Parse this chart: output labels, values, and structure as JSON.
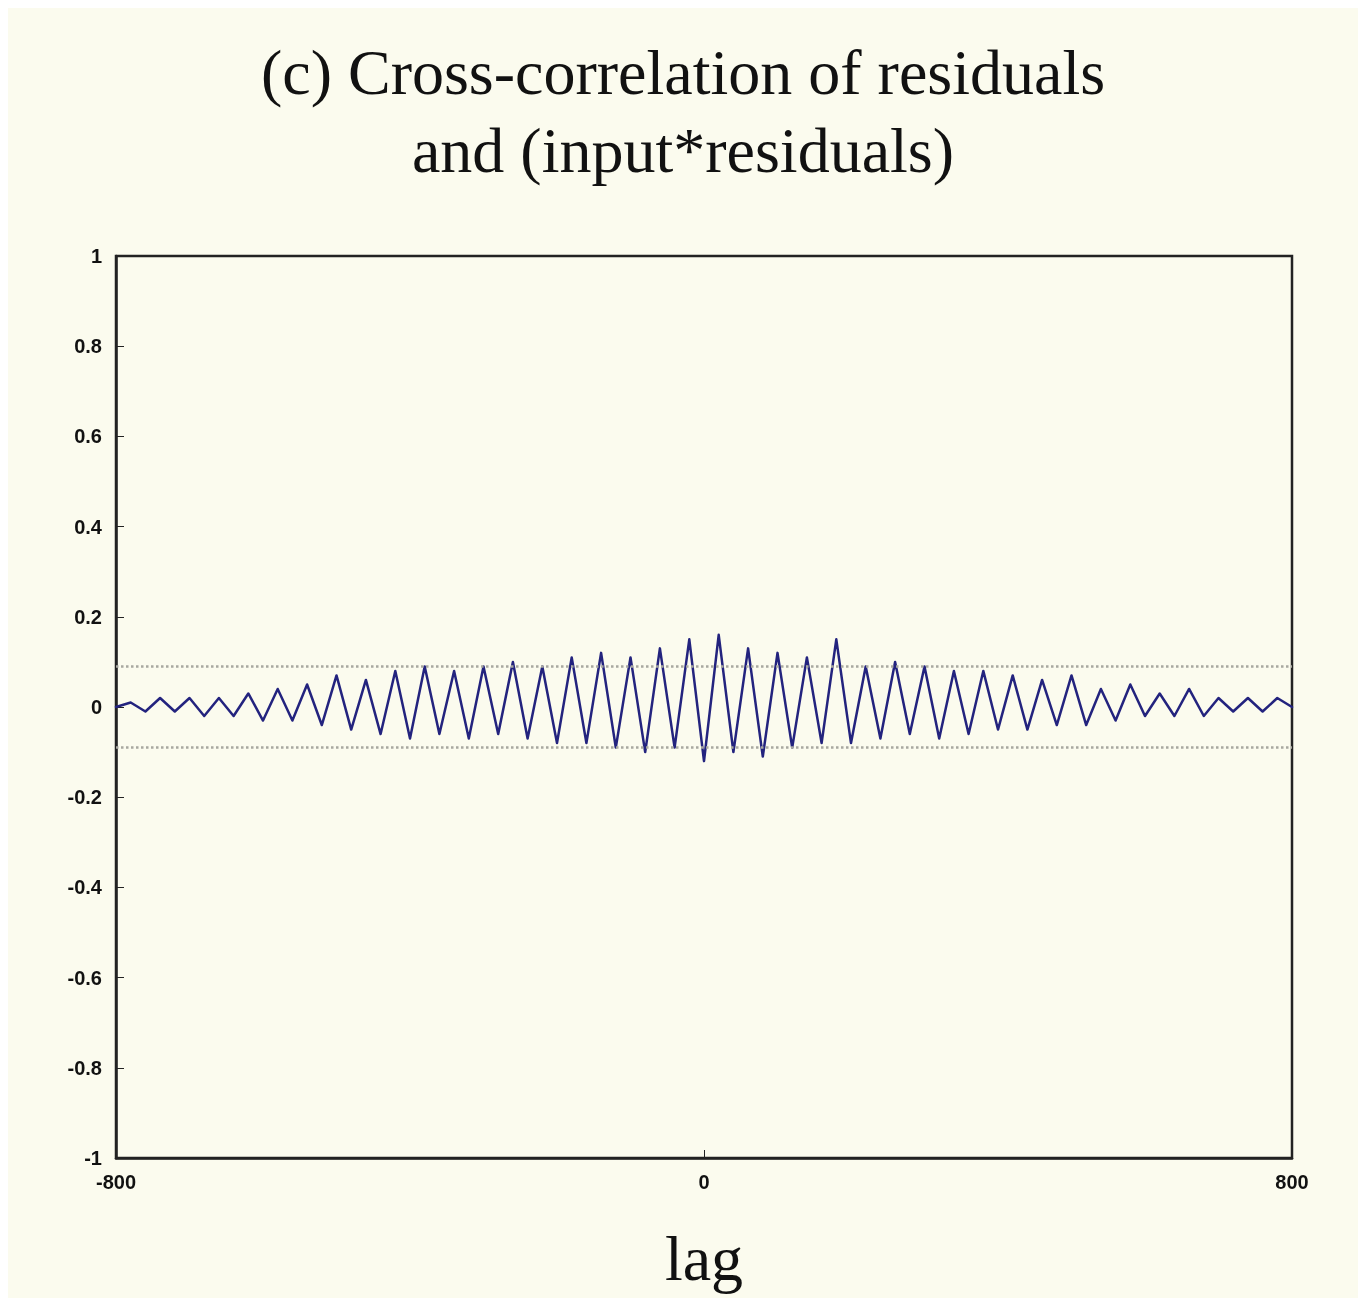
{
  "chart_data": {
    "type": "line",
    "title": "(c) Cross-correlation of residuals\nand (input*residuals)",
    "xlabel": "lag",
    "x": [
      -800,
      -780,
      -760,
      -740,
      -720,
      -700,
      -680,
      -660,
      -640,
      -620,
      -600,
      -580,
      -560,
      -540,
      -520,
      -500,
      -480,
      -460,
      -440,
      -420,
      -400,
      -380,
      -360,
      -340,
      -320,
      -300,
      -280,
      -260,
      -240,
      -220,
      -200,
      -180,
      -160,
      -140,
      -120,
      -100,
      -80,
      -60,
      -40,
      -20,
      0,
      20,
      40,
      60,
      80,
      100,
      120,
      140,
      160,
      180,
      200,
      220,
      240,
      260,
      280,
      300,
      320,
      340,
      360,
      380,
      400,
      420,
      440,
      460,
      480,
      500,
      520,
      540,
      560,
      580,
      600,
      620,
      640,
      660,
      680,
      700,
      720,
      740,
      760,
      780,
      800
    ],
    "series": [
      {
        "color": "#23237e",
        "values": [
          0.0,
          0.01,
          -0.01,
          0.02,
          -0.01,
          0.02,
          -0.02,
          0.02,
          -0.02,
          0.03,
          -0.03,
          0.04,
          -0.03,
          0.05,
          -0.04,
          0.07,
          -0.05,
          0.06,
          -0.06,
          0.08,
          -0.07,
          0.09,
          -0.06,
          0.08,
          -0.07,
          0.09,
          -0.06,
          0.1,
          -0.07,
          0.09,
          -0.08,
          0.11,
          -0.08,
          0.12,
          -0.09,
          0.11,
          -0.1,
          0.13,
          -0.09,
          0.15,
          -0.12,
          0.16,
          -0.1,
          0.13,
          -0.11,
          0.12,
          -0.09,
          0.11,
          -0.08,
          0.15,
          -0.08,
          0.09,
          -0.07,
          0.1,
          -0.06,
          0.09,
          -0.07,
          0.08,
          -0.06,
          0.08,
          -0.05,
          0.07,
          -0.05,
          0.06,
          -0.04,
          0.07,
          -0.04,
          0.04,
          -0.03,
          0.05,
          -0.02,
          0.03,
          -0.02,
          0.04,
          -0.02,
          0.02,
          -0.01,
          0.02,
          -0.01,
          0.02,
          0.0
        ]
      }
    ],
    "xlim": [
      -800,
      800
    ],
    "xticks": [
      -800,
      0,
      800
    ],
    "ylim": [
      -1,
      1
    ],
    "yticks": [
      -1,
      -0.8,
      -0.6,
      -0.4,
      -0.2,
      0,
      0.2,
      0.4,
      0.6,
      0.8,
      1
    ],
    "ref_lines": [
      {
        "axis": "y",
        "value": 0.09,
        "label": null,
        "color": "#a8a8a0",
        "line_style": "dotted"
      },
      {
        "axis": "y",
        "value": -0.09,
        "label": null,
        "color": "#a8a8a0",
        "line_style": "dotted"
      }
    ],
    "grid": false,
    "marker": "none",
    "line_style": "solid"
  }
}
